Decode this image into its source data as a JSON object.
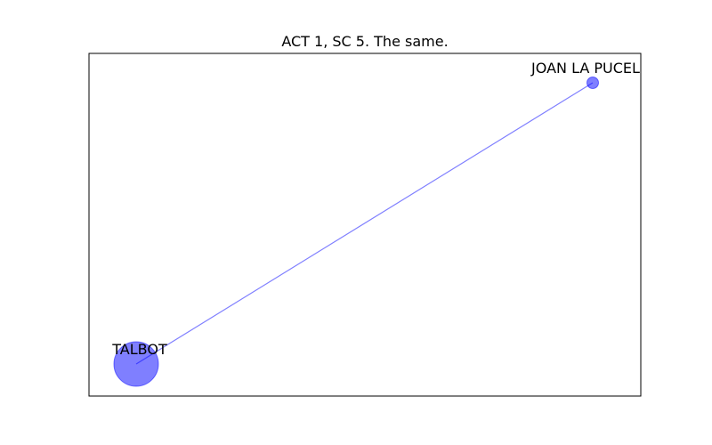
{
  "title": "ACT 1, SC 5. The same.",
  "colors": {
    "node_fill": "#0000ff",
    "node_stroke": "#0000ff",
    "edge": "#0000ff",
    "frame": "#000000"
  },
  "nodes": [
    {
      "id": "talbot",
      "label": "TALBOT",
      "weight": 5
    },
    {
      "id": "joan",
      "label": "JOAN LA PUCEL",
      "weight": 1
    }
  ],
  "edges": [
    {
      "source": "talbot",
      "target": "joan"
    }
  ]
}
